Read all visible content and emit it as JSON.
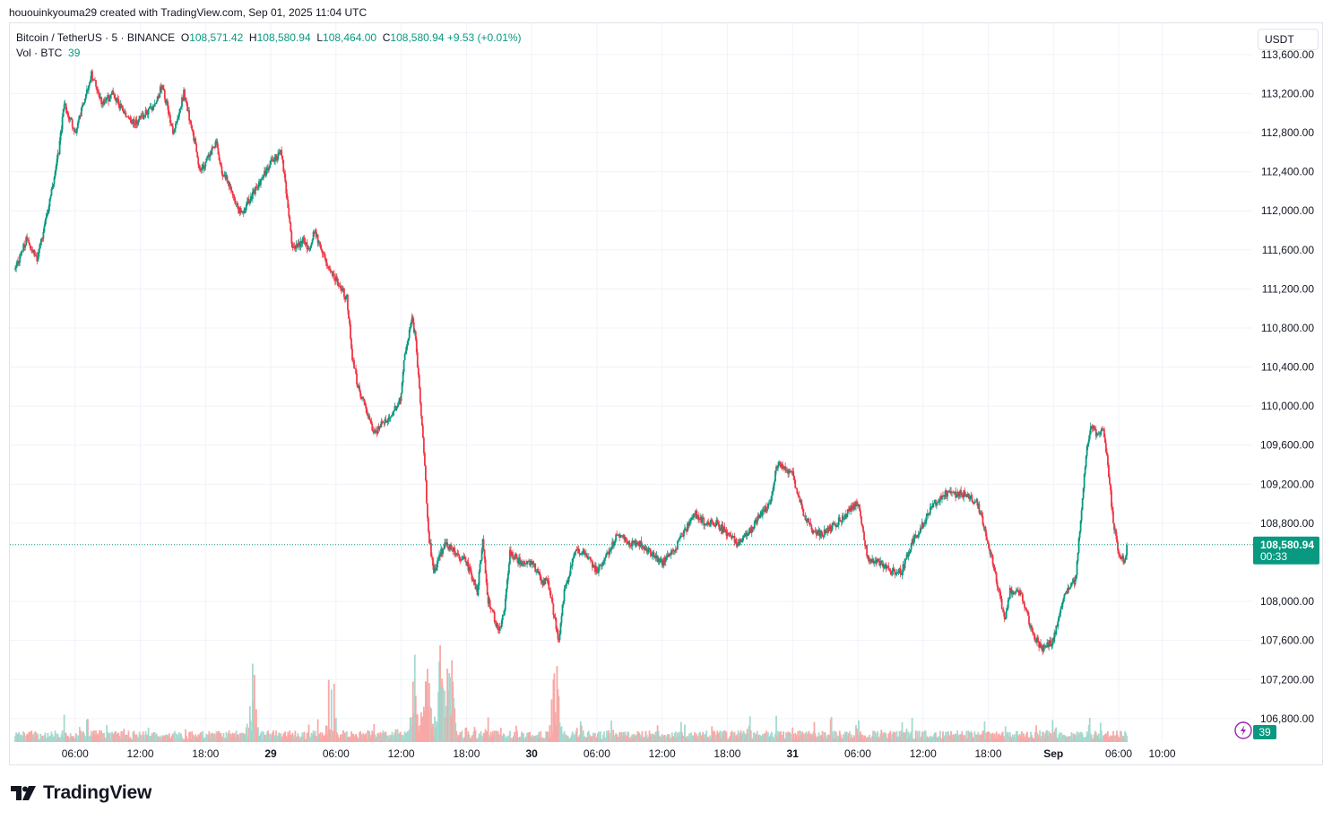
{
  "header": {
    "credit": "hououinkyouma29 created with TradingView.com, Sep 01, 2025 11:04 UTC"
  },
  "legend": {
    "symbol": "Bitcoin / TetherUS · 5 · BINANCE",
    "o_label": "O",
    "open": "108,571.42",
    "h_label": "H",
    "high": "108,580.94",
    "l_label": "L",
    "low": "108,464.00",
    "c_label": "C",
    "close": "108,580.94",
    "change": "+9.53 (+0.01%)",
    "vol_label": "Vol · BTC",
    "vol_value": "39"
  },
  "currency": "USDT",
  "price_tag": {
    "price": "108,580.94",
    "countdown": "00:33"
  },
  "volume_badge": "39",
  "brand": {
    "name": "TradingView"
  },
  "colors": {
    "up": "#089981",
    "down": "#f23645",
    "up_vol": "#a6d8cf",
    "down_vol": "#f7a9a7",
    "grid": "#f0f3fa"
  },
  "chart_data": {
    "type": "candlestick",
    "symbol": "Bitcoin / TetherUS",
    "interval": "5",
    "exchange": "BINANCE",
    "y_ticks": [
      "113,600.00",
      "113,200.00",
      "112,800.00",
      "112,400.00",
      "112,000.00",
      "111,600.00",
      "111,200.00",
      "110,800.00",
      "110,400.00",
      "110,000.00",
      "109,600.00",
      "109,200.00",
      "108,800.00",
      "108,000.00",
      "107,600.00",
      "107,200.00",
      "106,800.00"
    ],
    "y_tick_values": [
      113600,
      113200,
      112800,
      112400,
      112000,
      111600,
      111200,
      110800,
      110400,
      110000,
      109600,
      109200,
      108800,
      108000,
      107600,
      107200,
      106800
    ],
    "x_ticks": [
      "06:00",
      "12:00",
      "18:00",
      "29",
      "06:00",
      "12:00",
      "18:00",
      "30",
      "06:00",
      "12:00",
      "18:00",
      "31",
      "06:00",
      "12:00",
      "18:00",
      "Sep",
      "06:00",
      "10:00"
    ],
    "x_tick_hours": [
      6,
      12,
      18,
      24,
      30,
      36,
      42,
      48,
      54,
      60,
      66,
      72,
      78,
      84,
      90,
      96,
      102,
      106
    ],
    "time_range_hours": [
      0.5,
      107.8
    ],
    "ylim": [
      106560,
      113920
    ],
    "last_price": 108580.94,
    "price_path": [
      [
        0.5,
        111400
      ],
      [
        1.5,
        111700
      ],
      [
        2.5,
        111500
      ],
      [
        3.5,
        112000
      ],
      [
        4.5,
        112600
      ],
      [
        5,
        113100
      ],
      [
        6,
        112800
      ],
      [
        7,
        113200
      ],
      [
        7.5,
        113400
      ],
      [
        8.5,
        113100
      ],
      [
        9.5,
        113200
      ],
      [
        10.5,
        113000
      ],
      [
        11.5,
        112900
      ],
      [
        12.5,
        113000
      ],
      [
        13.5,
        113100
      ],
      [
        14,
        113300
      ],
      [
        15,
        112800
      ],
      [
        16,
        113200
      ],
      [
        17,
        112700
      ],
      [
        17.5,
        112400
      ],
      [
        18,
        112500
      ],
      [
        19,
        112700
      ],
      [
        19.5,
        112400
      ],
      [
        20,
        112300
      ],
      [
        21,
        112000
      ],
      [
        21.5,
        112000
      ],
      [
        22,
        112100
      ],
      [
        23,
        112300
      ],
      [
        24,
        112500
      ],
      [
        25,
        112600
      ],
      [
        25.5,
        112100
      ],
      [
        26,
        111600
      ],
      [
        27,
        111700
      ],
      [
        27.5,
        111600
      ],
      [
        28,
        111800
      ],
      [
        29,
        111500
      ],
      [
        30,
        111300
      ],
      [
        31,
        111100
      ],
      [
        31.5,
        110500
      ],
      [
        32,
        110200
      ],
      [
        33,
        109900
      ],
      [
        33.5,
        109700
      ],
      [
        34,
        109800
      ],
      [
        35,
        109900
      ],
      [
        36,
        110100
      ],
      [
        36.3,
        110500
      ],
      [
        37,
        110900
      ],
      [
        37.3,
        110700
      ],
      [
        38,
        109700
      ],
      [
        38.5,
        108700
      ],
      [
        39,
        108300
      ],
      [
        40,
        108600
      ],
      [
        41,
        108500
      ],
      [
        42,
        108400
      ],
      [
        43,
        108100
      ],
      [
        43.5,
        108600
      ],
      [
        44,
        108000
      ],
      [
        45,
        107700
      ],
      [
        45.5,
        107900
      ],
      [
        46,
        108500
      ],
      [
        47,
        108400
      ],
      [
        48,
        108400
      ],
      [
        49,
        108200
      ],
      [
        49.5,
        108200
      ],
      [
        50,
        107900
      ],
      [
        50.5,
        107600
      ],
      [
        51,
        108100
      ],
      [
        52,
        108500
      ],
      [
        53,
        108500
      ],
      [
        54,
        108300
      ],
      [
        55,
        108500
      ],
      [
        56,
        108700
      ],
      [
        57,
        108600
      ],
      [
        58,
        108600
      ],
      [
        59,
        108500
      ],
      [
        60,
        108400
      ],
      [
        61,
        108500
      ],
      [
        62,
        108700
      ],
      [
        63,
        108900
      ],
      [
        64,
        108800
      ],
      [
        65,
        108800
      ],
      [
        66,
        108700
      ],
      [
        67,
        108600
      ],
      [
        68,
        108700
      ],
      [
        69,
        108900
      ],
      [
        70,
        109000
      ],
      [
        70.5,
        109400
      ],
      [
        71,
        109400
      ],
      [
        72,
        109300
      ],
      [
        73,
        108900
      ],
      [
        74,
        108700
      ],
      [
        75,
        108700
      ],
      [
        76,
        108800
      ],
      [
        77,
        108900
      ],
      [
        78,
        109000
      ],
      [
        79,
        108400
      ],
      [
        80,
        108400
      ],
      [
        81,
        108300
      ],
      [
        82,
        108300
      ],
      [
        83,
        108600
      ],
      [
        84,
        108800
      ],
      [
        85,
        109000
      ],
      [
        86,
        109100
      ],
      [
        87,
        109100
      ],
      [
        88,
        109100
      ],
      [
        89,
        109000
      ],
      [
        90,
        108600
      ],
      [
        91,
        108100
      ],
      [
        91.5,
        107800
      ],
      [
        92,
        108100
      ],
      [
        93,
        108100
      ],
      [
        94,
        107700
      ],
      [
        95,
        107500
      ],
      [
        96,
        107600
      ],
      [
        97,
        108100
      ],
      [
        98,
        108200
      ],
      [
        99,
        109500
      ],
      [
        99.5,
        109800
      ],
      [
        100,
        109700
      ],
      [
        100.5,
        109800
      ],
      [
        101,
        109400
      ],
      [
        101.5,
        108800
      ],
      [
        102,
        108500
      ],
      [
        102.5,
        108400
      ],
      [
        102.8,
        108580
      ]
    ],
    "volume_spikes_hours": [
      37.3,
      38.3,
      40.5,
      39.6,
      22.3,
      29.6,
      50.2
    ]
  }
}
